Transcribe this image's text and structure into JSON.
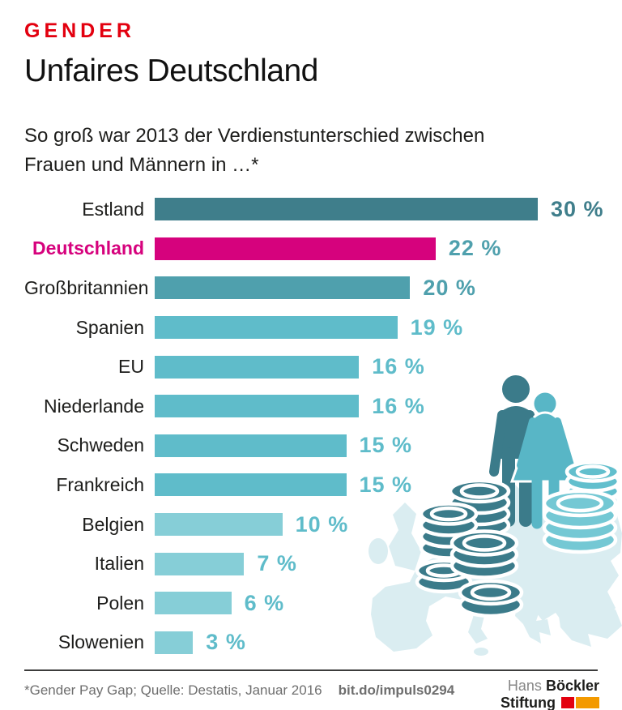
{
  "header": {
    "kicker": "GENDER",
    "title": "Unfaires Deutschland",
    "subtitle_line1": "So groß war 2013 der Verdienstunterschied zwischen",
    "subtitle_line2": "Frauen und Männern in …*"
  },
  "chart_data": {
    "type": "bar",
    "orientation": "horizontal",
    "title": "Unfaires Deutschland",
    "subtitle": "So groß war 2013 der Verdienstunterschied zwischen Frauen und Männern in …*",
    "unit": "%",
    "max_value": 30,
    "categories": [
      "Estland",
      "Deutschland",
      "Großbritannien",
      "Spanien",
      "EU",
      "Niederlande",
      "Schweden",
      "Frankreich",
      "Belgien",
      "Italien",
      "Polen",
      "Slowenien"
    ],
    "values": [
      30,
      22,
      20,
      19,
      16,
      16,
      15,
      15,
      10,
      7,
      6,
      3
    ],
    "value_labels": [
      "30 %",
      "22 %",
      "20 %",
      "19 %",
      "16 %",
      "16 %",
      "15 %",
      "15 %",
      "10 %",
      "7 %",
      "6 %",
      "3 %"
    ],
    "bar_colors": [
      "#3f7e8b",
      "#d6027d",
      "#4fa0ad",
      "#5fbcca",
      "#5fbcca",
      "#5fbcca",
      "#5fbcca",
      "#5fbcca",
      "#86ced7",
      "#86ced7",
      "#86ced7",
      "#86ced7"
    ],
    "value_label_colors": [
      "#3f7e8b",
      "#4fa0ad",
      "#4fa0ad",
      "#5fbcca",
      "#5fbcca",
      "#5fbcca",
      "#5fbcca",
      "#5fbcca",
      "#5fbcca",
      "#5fbcca",
      "#5fbcca",
      "#5fbcca"
    ],
    "category_label_colors": [
      "#1d1d1b",
      "#d6027d",
      "#1d1d1b",
      "#1d1d1b",
      "#1d1d1b",
      "#1d1d1b",
      "#1d1d1b",
      "#1d1d1b",
      "#1d1d1b",
      "#1d1d1b",
      "#1d1d1b",
      "#1d1d1b"
    ],
    "highlight_index": 1,
    "legend": "none",
    "grid": false
  },
  "footer": {
    "source": "*Gender Pay Gap; Quelle: Destatis, Januar 2016",
    "link": "bit.do/impuls0294",
    "logo": {
      "name_light": "Hans",
      "name_bold": "Böckler",
      "line2_bold": "Stiftung"
    }
  },
  "colors": {
    "accent_red": "#e3000f",
    "highlight_magenta": "#d6027d",
    "teal_dark": "#3f7e8b",
    "teal_mid": "#4fa0ad",
    "teal": "#5fbcca",
    "teal_light": "#86ced7",
    "map_fill": "#daedf1",
    "logo_red": "#e3000f",
    "logo_orange": "#f39a00",
    "text_dark": "#1d1d1b",
    "text_gray": "#6e6e6e"
  }
}
